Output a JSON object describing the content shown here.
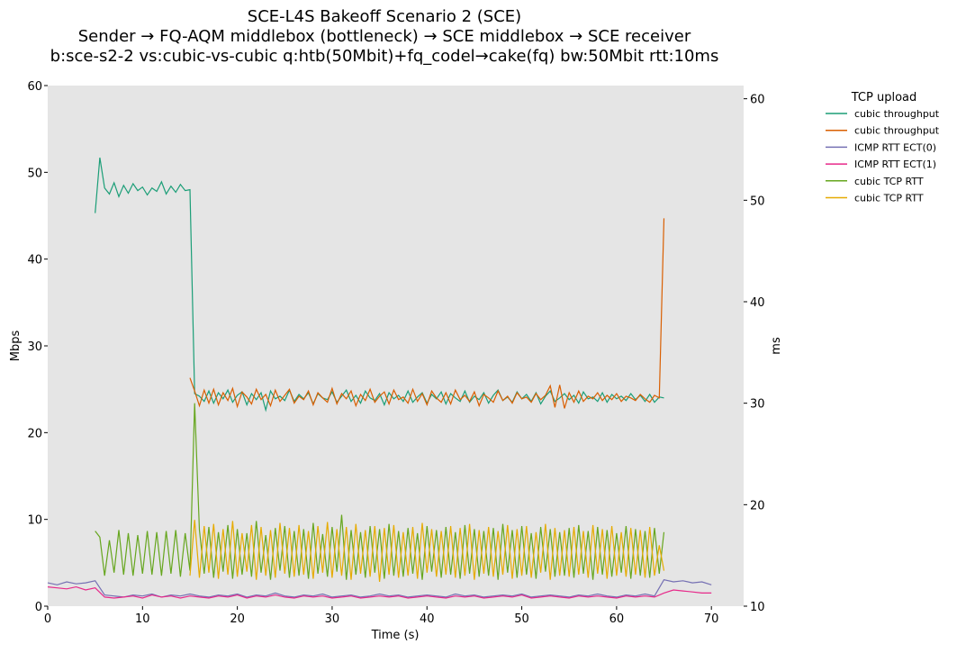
{
  "chart_data": {
    "type": "line",
    "title_lines": [
      "SCE-L4S Bakeoff Scenario 2 (SCE)",
      "Sender → FQ-AQM middlebox (bottleneck) → SCE middlebox → SCE receiver",
      "b:sce-s2-2 vs:cubic-vs-cubic q:htb(50Mbit)+fq_codel→cake(fq) bw:50Mbit rtt:10ms"
    ],
    "xlabel": "Time (s)",
    "ylabel": "Mbps",
    "ylabel_right": "ms",
    "xlim": [
      0,
      73.4
    ],
    "ylim": [
      0,
      60
    ],
    "ylim_right": [
      10,
      61.3
    ],
    "xticks": [
      "0",
      "10",
      "20",
      "30",
      "40",
      "50",
      "60",
      "70"
    ],
    "yticks": [
      "0",
      "10",
      "20",
      "30",
      "40",
      "50",
      "60"
    ],
    "yticks_right": [
      "10",
      "20",
      "30",
      "40",
      "50",
      "60"
    ],
    "grid": false,
    "legend": {
      "title": "TCP upload",
      "placement": "outside-top-right"
    },
    "series": [
      {
        "name": "cubic throughput",
        "axis": "left",
        "color": "#1b9e77",
        "x0": 5.0,
        "dt": 0.5,
        "values": [
          45.3,
          51.7,
          48.2,
          47.5,
          48.8,
          47.2,
          48.5,
          47.6,
          48.7,
          47.9,
          48.3,
          47.4,
          48.2,
          47.8,
          48.9,
          47.5,
          48.4,
          47.7,
          48.6,
          47.9,
          48.0,
          24.5,
          24.2,
          23.6,
          24.8,
          23.4,
          24.6,
          23.9,
          24.9,
          23.5,
          24.3,
          24.7,
          23.2,
          24.5,
          23.8,
          24.6,
          22.6,
          24.8,
          23.9,
          24.2,
          23.7,
          24.9,
          23.6,
          24.4,
          23.9,
          24.6,
          23.3,
          24.5,
          24.0,
          23.8,
          24.7,
          23.5,
          24.2,
          24.9,
          23.6,
          24.3,
          23.4,
          24.8,
          24.0,
          23.7,
          24.5,
          23.2,
          24.6,
          23.9,
          24.3,
          23.6,
          24.8,
          23.5,
          24.1,
          24.6,
          23.4,
          24.4,
          23.9,
          24.7,
          23.3,
          24.5,
          24.0,
          23.6,
          24.8,
          23.5,
          24.2,
          23.8,
          24.6,
          23.4,
          24.3,
          24.9,
          23.7,
          24.1,
          23.5,
          24.7,
          23.9,
          24.4,
          23.6,
          24.6,
          23.3,
          24.2,
          24.8,
          23.6,
          24.0,
          24.5,
          23.8,
          24.3,
          23.4,
          24.7,
          23.9,
          24.1,
          23.6,
          24.6,
          23.5,
          24.4,
          23.9,
          24.2,
          23.7,
          24.5,
          23.8,
          24.3,
          23.6,
          24.4,
          23.5,
          24.1,
          24.0
        ]
      },
      {
        "name": "cubic throughput",
        "axis": "left",
        "color": "#d95f02",
        "x0": 15.0,
        "dt": 0.5,
        "values": [
          26.3,
          24.8,
          23.1,
          24.9,
          23.4,
          25.0,
          23.2,
          24.6,
          23.7,
          25.1,
          23.0,
          24.7,
          24.1,
          23.3,
          25.0,
          23.8,
          24.4,
          23.1,
          24.9,
          23.6,
          24.3,
          25.0,
          23.4,
          24.2,
          23.8,
          24.8,
          23.2,
          24.6,
          24.0,
          23.5,
          25.1,
          23.3,
          24.5,
          23.9,
          24.8,
          23.1,
          24.4,
          23.7,
          25.0,
          23.5,
          24.2,
          24.7,
          23.3,
          24.9,
          23.8,
          24.1,
          23.4,
          25.0,
          23.6,
          24.5,
          23.2,
          24.8,
          24.0,
          23.5,
          24.6,
          23.3,
          24.9,
          23.8,
          24.3,
          23.6,
          24.7,
          23.1,
          24.4,
          24.0,
          23.5,
          24.8,
          23.7,
          24.2,
          23.4,
          24.6,
          23.9,
          24.1,
          23.5,
          24.5,
          23.8,
          24.3,
          25.4,
          22.9,
          25.5,
          22.8,
          24.6,
          23.5,
          24.8,
          23.6,
          24.2,
          23.9,
          24.6,
          23.7,
          24.3,
          23.8,
          24.5,
          23.6,
          24.2,
          24.0,
          23.7,
          24.4,
          23.9,
          23.5,
          24.3,
          24.0,
          44.7
        ]
      },
      {
        "name": "ICMP RTT ECT(0)",
        "axis": "right",
        "color": "#7570b3",
        "x0": 0,
        "dt": 1.0,
        "values": [
          12.3,
          12.1,
          12.4,
          12.2,
          12.3,
          12.5,
          11.1,
          11.0,
          10.9,
          11.1,
          11.0,
          11.2,
          10.9,
          11.1,
          11.0,
          11.2,
          11.0,
          10.9,
          11.1,
          11.0,
          11.2,
          10.9,
          11.1,
          11.0,
          11.3,
          11.0,
          10.9,
          11.1,
          11.0,
          11.2,
          10.9,
          11.0,
          11.1,
          10.9,
          11.0,
          11.2,
          11.0,
          11.1,
          10.9,
          11.0,
          11.1,
          11.0,
          10.9,
          11.2,
          11.0,
          11.1,
          10.9,
          11.0,
          11.1,
          11.0,
          11.2,
          10.9,
          11.0,
          11.1,
          11.0,
          10.9,
          11.1,
          11.0,
          11.2,
          11.0,
          10.9,
          11.1,
          11.0,
          11.2,
          11.0,
          12.6,
          12.4,
          12.5,
          12.3,
          12.4,
          12.1
        ]
      },
      {
        "name": "ICMP RTT ECT(1)",
        "axis": "right",
        "color": "#e7298a",
        "x0": 0,
        "dt": 1.0,
        "values": [
          11.9,
          11.8,
          11.7,
          11.9,
          11.6,
          11.8,
          10.9,
          10.8,
          10.9,
          11.0,
          10.8,
          11.1,
          10.9,
          11.0,
          10.8,
          11.0,
          10.9,
          10.8,
          11.0,
          10.9,
          11.1,
          10.8,
          11.0,
          10.9,
          11.1,
          10.9,
          10.8,
          11.0,
          10.9,
          11.0,
          10.8,
          10.9,
          11.0,
          10.8,
          10.9,
          11.0,
          10.9,
          11.0,
          10.8,
          10.9,
          11.0,
          10.9,
          10.8,
          11.0,
          10.9,
          11.0,
          10.8,
          10.9,
          11.0,
          10.9,
          11.1,
          10.8,
          10.9,
          11.0,
          10.9,
          10.8,
          11.0,
          10.9,
          11.0,
          10.9,
          10.8,
          11.0,
          10.9,
          11.0,
          10.9,
          11.3,
          11.6,
          11.5,
          11.4,
          11.3,
          11.3
        ]
      },
      {
        "name": "cubic TCP RTT",
        "axis": "right",
        "color": "#66a61e",
        "x0": 5.0,
        "dt": 0.5,
        "values": [
          17.4,
          16.8,
          13.0,
          16.5,
          13.3,
          17.5,
          13.1,
          17.2,
          13.0,
          17.0,
          13.2,
          17.4,
          13.1,
          17.3,
          13.0,
          17.4,
          13.2,
          17.5,
          12.9,
          17.2,
          13.5,
          30.0,
          17.5,
          13.2,
          17.8,
          12.8,
          17.3,
          13.4,
          18.0,
          12.7,
          17.6,
          13.1,
          17.2,
          12.9,
          18.4,
          13.3,
          17.0,
          12.6,
          17.7,
          13.5,
          17.9,
          12.8,
          17.4,
          13.0,
          17.6,
          12.7,
          18.2,
          13.2,
          17.1,
          12.9,
          17.8,
          13.4,
          19.0,
          12.6,
          17.5,
          13.1,
          17.3,
          12.8,
          17.9,
          13.3,
          17.6,
          12.7,
          18.1,
          13.0,
          17.4,
          12.9,
          17.7,
          13.2,
          17.2,
          12.6,
          17.9,
          13.4,
          17.5,
          12.8,
          17.8,
          13.1,
          17.3,
          12.7,
          18.0,
          13.2,
          17.6,
          12.9,
          17.4,
          13.0,
          17.7,
          12.6,
          18.1,
          13.3,
          17.5,
          12.8,
          17.9,
          13.1,
          17.2,
          12.7,
          17.8,
          13.4,
          17.6,
          12.9,
          17.3,
          13.0,
          17.7,
          12.8,
          18.0,
          13.2,
          17.4,
          12.6,
          17.8,
          13.1,
          17.5,
          12.9,
          17.2,
          13.3,
          17.9,
          12.7,
          17.6,
          13.0,
          17.4,
          12.8,
          17.7,
          13.2,
          17.3
        ]
      },
      {
        "name": "cubic TCP RTT",
        "axis": "right",
        "color": "#e6ab02",
        "x0": 15.0,
        "dt": 0.5,
        "values": [
          13.0,
          18.5,
          12.8,
          17.9,
          13.3,
          18.1,
          12.7,
          17.6,
          13.1,
          18.4,
          12.9,
          17.2,
          13.4,
          18.0,
          12.6,
          17.8,
          13.0,
          17.5,
          12.8,
          18.2,
          13.2,
          17.7,
          12.9,
          18.0,
          13.1,
          17.4,
          12.7,
          17.9,
          13.3,
          18.3,
          12.8,
          17.6,
          13.0,
          17.8,
          12.6,
          18.1,
          13.2,
          17.5,
          12.9,
          17.9,
          12.4,
          17.7,
          13.1,
          18.0,
          12.8,
          17.3,
          13.0,
          17.8,
          12.7,
          18.2,
          13.3,
          17.6,
          12.9,
          17.4,
          13.1,
          17.9,
          12.8,
          17.7,
          13.0,
          18.1,
          12.6,
          17.5,
          13.2,
          17.8,
          12.9,
          17.4,
          13.1,
          18.0,
          12.7,
          17.6,
          13.0,
          17.9,
          12.8,
          17.3,
          13.3,
          18.1,
          12.6,
          17.7,
          13.0,
          17.5,
          12.9,
          17.8,
          13.1,
          17.4,
          12.8,
          18.0,
          13.2,
          17.6,
          12.7,
          17.9,
          13.0,
          17.3,
          12.9,
          17.7,
          13.1,
          17.5,
          12.8,
          17.8,
          13.0,
          16.0,
          13.5
        ]
      }
    ]
  }
}
